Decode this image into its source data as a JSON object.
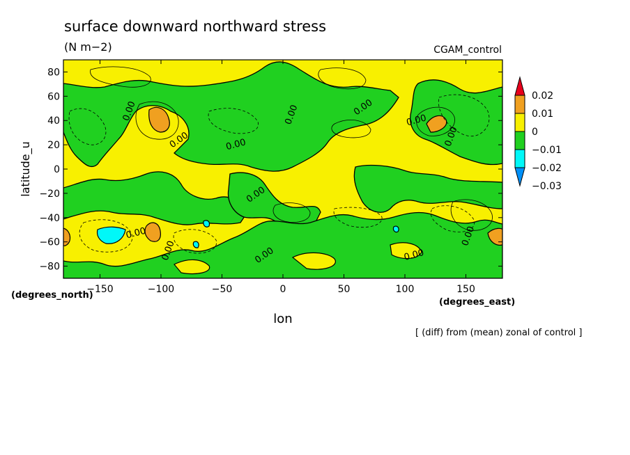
{
  "chart_data": {
    "type": "contour",
    "title": "surface downward northward stress",
    "units": "(N m−2)",
    "dataset": "CGAM_control",
    "xlabel": "lon",
    "ylabel": "latitude_u",
    "x_units": "(degrees_east)",
    "y_units": "(degrees_north)",
    "note": "[ (diff) from (mean) zonal of control ]",
    "xlim": [
      -180,
      180
    ],
    "ylim": [
      -90,
      90
    ],
    "x_ticks": [
      -150,
      -100,
      -50,
      0,
      50,
      100,
      150
    ],
    "y_ticks": [
      80,
      60,
      40,
      20,
      0,
      -20,
      -40,
      -60,
      -80
    ],
    "contour_label": "0.00",
    "contour_label_points": [
      {
        "lon": -124,
        "lat": 47
      },
      {
        "lon": -84,
        "lat": 22
      },
      {
        "lon": -38,
        "lat": 18
      },
      {
        "lon": 9,
        "lat": 44
      },
      {
        "lon": 67,
        "lat": 49
      },
      {
        "lon": 110,
        "lat": 38
      },
      {
        "lon": 140,
        "lat": 26
      },
      {
        "lon": -21,
        "lat": -23
      },
      {
        "lon": -120,
        "lat": -55
      },
      {
        "lon": -92,
        "lat": -68
      },
      {
        "lon": -14,
        "lat": -73
      },
      {
        "lon": 108,
        "lat": -73
      },
      {
        "lon": 154,
        "lat": -56
      }
    ],
    "colorbar": {
      "levels": [
        "0.02",
        "0.01",
        "0",
        "−0.01",
        "−0.02",
        "−0.03"
      ],
      "colors": [
        "#e8001c",
        "#f0a020",
        "#f8f000",
        "#20d020",
        "#00f8f8",
        "#0090f8"
      ]
    }
  }
}
